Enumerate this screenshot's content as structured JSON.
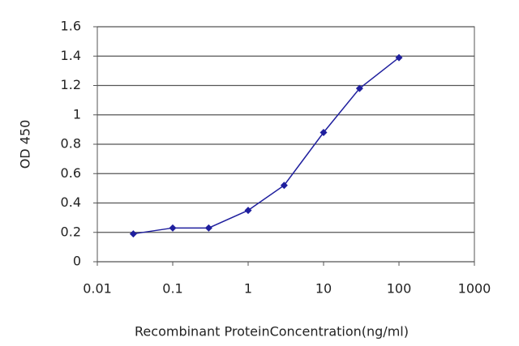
{
  "chart_data": {
    "type": "line",
    "x_label": "Recombinant ProteinConcentration(ng/ml)",
    "y_label": "OD 450",
    "x": [
      0.03,
      0.1,
      0.3,
      1,
      3,
      10,
      30,
      100
    ],
    "series": [
      {
        "color": "#1f1f9e",
        "values": [
          0.19,
          0.23,
          0.23,
          0.35,
          0.52,
          0.88,
          1.18,
          1.39
        ]
      }
    ],
    "xscale": "log",
    "xlim": [
      0.01,
      1000
    ],
    "xticks": [
      0.01,
      0.1,
      1,
      10,
      100,
      1000
    ],
    "ylim": [
      0,
      1.6
    ],
    "yticks": [
      0,
      0.2,
      0.4,
      0.6,
      0.8,
      1,
      1.2,
      1.4,
      1.6
    ],
    "grid": true
  }
}
